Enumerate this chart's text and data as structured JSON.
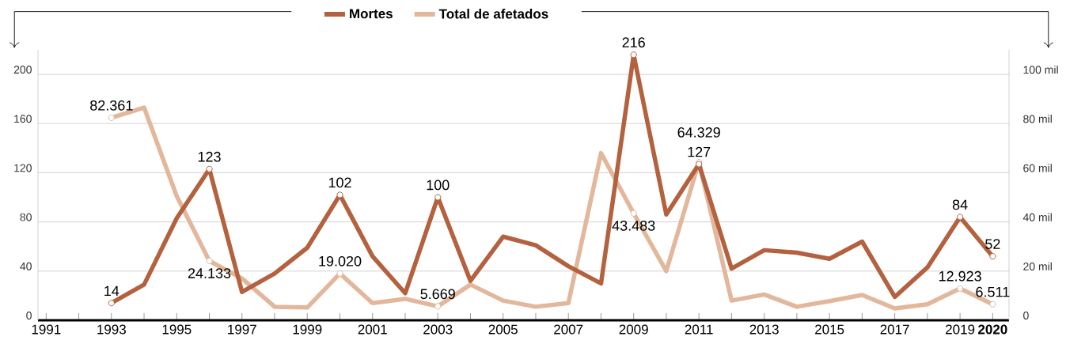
{
  "chart_data": {
    "type": "line",
    "x": [
      1993,
      1994,
      1995,
      1996,
      1997,
      1998,
      1999,
      2000,
      2001,
      2002,
      2003,
      2004,
      2005,
      2006,
      2007,
      2008,
      2009,
      2010,
      2011,
      2012,
      2013,
      2014,
      2015,
      2016,
      2017,
      2018,
      2019,
      2020
    ],
    "xlim": [
      1990.75,
      2020.5
    ],
    "xticks": [
      1991,
      {
        "value": 1992,
        "label": null
      },
      1993,
      {
        "value": 1994,
        "label": null
      },
      1995,
      {
        "value": 1996,
        "label": null
      },
      1997,
      {
        "value": 1998,
        "label": null
      },
      1999,
      {
        "value": 2000,
        "label": null
      },
      2001,
      {
        "value": 2002,
        "label": null
      },
      2003,
      {
        "value": 2004,
        "label": null
      },
      2005,
      {
        "value": 2006,
        "label": null
      },
      2007,
      {
        "value": 2008,
        "label": null
      },
      2009,
      {
        "value": 2010,
        "label": null
      },
      2011,
      {
        "value": 2012,
        "label": null
      },
      2013,
      {
        "value": 2014,
        "label": null
      },
      2015,
      {
        "value": 2016,
        "label": null
      },
      2017,
      {
        "value": 2018,
        "label": null
      },
      2019,
      {
        "value": 2020,
        "label": "**2020**"
      }
    ],
    "ylim": [
      0,
      220
    ],
    "yticks": [
      0,
      40,
      80,
      120,
      160,
      200
    ],
    "y2lim": [
      0,
      110
    ],
    "y2ticks": [
      0,
      {
        "value": 20,
        "label": "20 mil"
      },
      {
        "value": 40,
        "label": "40 mil"
      },
      {
        "value": 60,
        "label": "60 mil"
      },
      {
        "value": 80,
        "label": "80 mil"
      },
      {
        "value": 100,
        "label": "100 mil"
      }
    ],
    "grid": "y",
    "legend": "top",
    "series": [
      {
        "name": "Mortes",
        "color": "#b3613f",
        "values": [
          14,
          29,
          83,
          123,
          23,
          38,
          59,
          102,
          52,
          22,
          100,
          32,
          68,
          61,
          44,
          30,
          216,
          86,
          127,
          42,
          57,
          55,
          50,
          64,
          19,
          43,
          84,
          52
        ],
        "value_labels": [
          "14",
          null,
          null,
          "123",
          null,
          null,
          null,
          "102",
          null,
          null,
          "100",
          null,
          null,
          null,
          null,
          null,
          "216",
          null,
          "127",
          null,
          null,
          null,
          null,
          null,
          null,
          null,
          "84",
          "52"
        ]
      },
      {
        "name": "Total de afetados",
        "color": "#e2b79b",
        "axis": "y2",
        "values": [
          82.361,
          86.5,
          50.5,
          24.133,
          17,
          5.5,
          5.2,
          19.02,
          7,
          8.7,
          5.669,
          14.5,
          8,
          5.5,
          7,
          68,
          43.483,
          20,
          64.329,
          8,
          10.5,
          5.5,
          7.8,
          10.3,
          4.8,
          6.5,
          12.923,
          6.511
        ],
        "value_labels": [
          "82.361",
          null,
          null,
          "24.133",
          null,
          null,
          null,
          "19.020",
          null,
          null,
          "5.669",
          null,
          null,
          null,
          null,
          null,
          "43.483",
          null,
          "64.329",
          null,
          null,
          null,
          null,
          null,
          null,
          null,
          "12.923",
          "6.511"
        ]
      }
    ]
  }
}
